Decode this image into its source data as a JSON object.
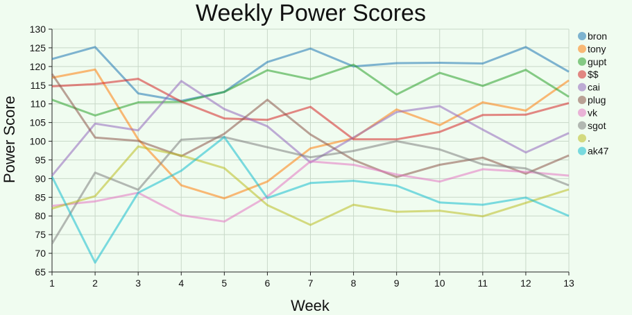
{
  "chart_data": {
    "type": "line",
    "title": "Weekly Power Scores",
    "xlabel": "Week",
    "ylabel": "Power Score",
    "x": [
      1,
      2,
      3,
      4,
      5,
      6,
      7,
      8,
      9,
      10,
      11,
      12,
      13
    ],
    "ylim": [
      65,
      130
    ],
    "yticks": [
      65,
      70,
      75,
      80,
      85,
      90,
      95,
      100,
      105,
      110,
      115,
      120,
      125,
      130
    ],
    "grid": true,
    "legend_position": "right",
    "series": [
      {
        "name": "bron",
        "color": "#1f77b4",
        "values": [
          122,
          125.2,
          112.8,
          110.8,
          113.2,
          121.2,
          124.8,
          120,
          120.9,
          121,
          120.8,
          125.2,
          118.6
        ]
      },
      {
        "name": "tony",
        "color": "#ff7f0e",
        "values": [
          117,
          119.2,
          100.5,
          88.2,
          84.7,
          89.2,
          98.1,
          100.8,
          108.5,
          104.3,
          110.4,
          108.2,
          116.3
        ]
      },
      {
        "name": "gupt",
        "color": "#2ca02c",
        "values": [
          111.1,
          106.9,
          110.4,
          110.5,
          113.2,
          119,
          116.6,
          120.5,
          112.5,
          118.3,
          114.8,
          119.1,
          111.9
        ]
      },
      {
        "name": "$$",
        "color": "#d62728",
        "values": [
          114.7,
          115.3,
          116.7,
          110.6,
          106.1,
          105.7,
          109.2,
          100.5,
          100.5,
          102.5,
          107,
          107.1,
          110.2
        ]
      },
      {
        "name": "cai",
        "color": "#9467bd",
        "values": [
          90.8,
          104.7,
          102.9,
          116.1,
          108.6,
          104,
          94.3,
          101,
          107.8,
          109.4,
          103.1,
          97,
          102.2
        ]
      },
      {
        "name": "plug",
        "color": "#8c564b",
        "values": [
          118,
          101,
          100.1,
          96,
          102,
          111.1,
          101.8,
          95,
          90.4,
          93.7,
          95.6,
          91.3,
          96.2
        ]
      },
      {
        "name": "vk",
        "color": "#e377c2",
        "values": [
          82.7,
          83.9,
          86.2,
          80.2,
          78.5,
          85.2,
          94.6,
          93.7,
          91.1,
          89.2,
          92.5,
          91.8,
          90.8
        ]
      },
      {
        "name": "sgot",
        "color": "#7f7f7f",
        "values": [
          72.6,
          91.6,
          87,
          100.4,
          101.1,
          98.4,
          95.7,
          97.4,
          100,
          97.8,
          93.8,
          92.7,
          88.2
        ]
      },
      {
        "name": ".",
        "color": "#bcbd22",
        "values": [
          82,
          85.3,
          98.6,
          96.2,
          92.8,
          82.9,
          77.6,
          83,
          81.1,
          81.4,
          79.9,
          83.5,
          87.1
        ]
      },
      {
        "name": "ak47",
        "color": "#17becf",
        "values": [
          90.5,
          67.5,
          86.2,
          92.1,
          101.1,
          84.8,
          88.8,
          89.4,
          88.1,
          83.6,
          83,
          84.9,
          80
        ]
      }
    ]
  }
}
